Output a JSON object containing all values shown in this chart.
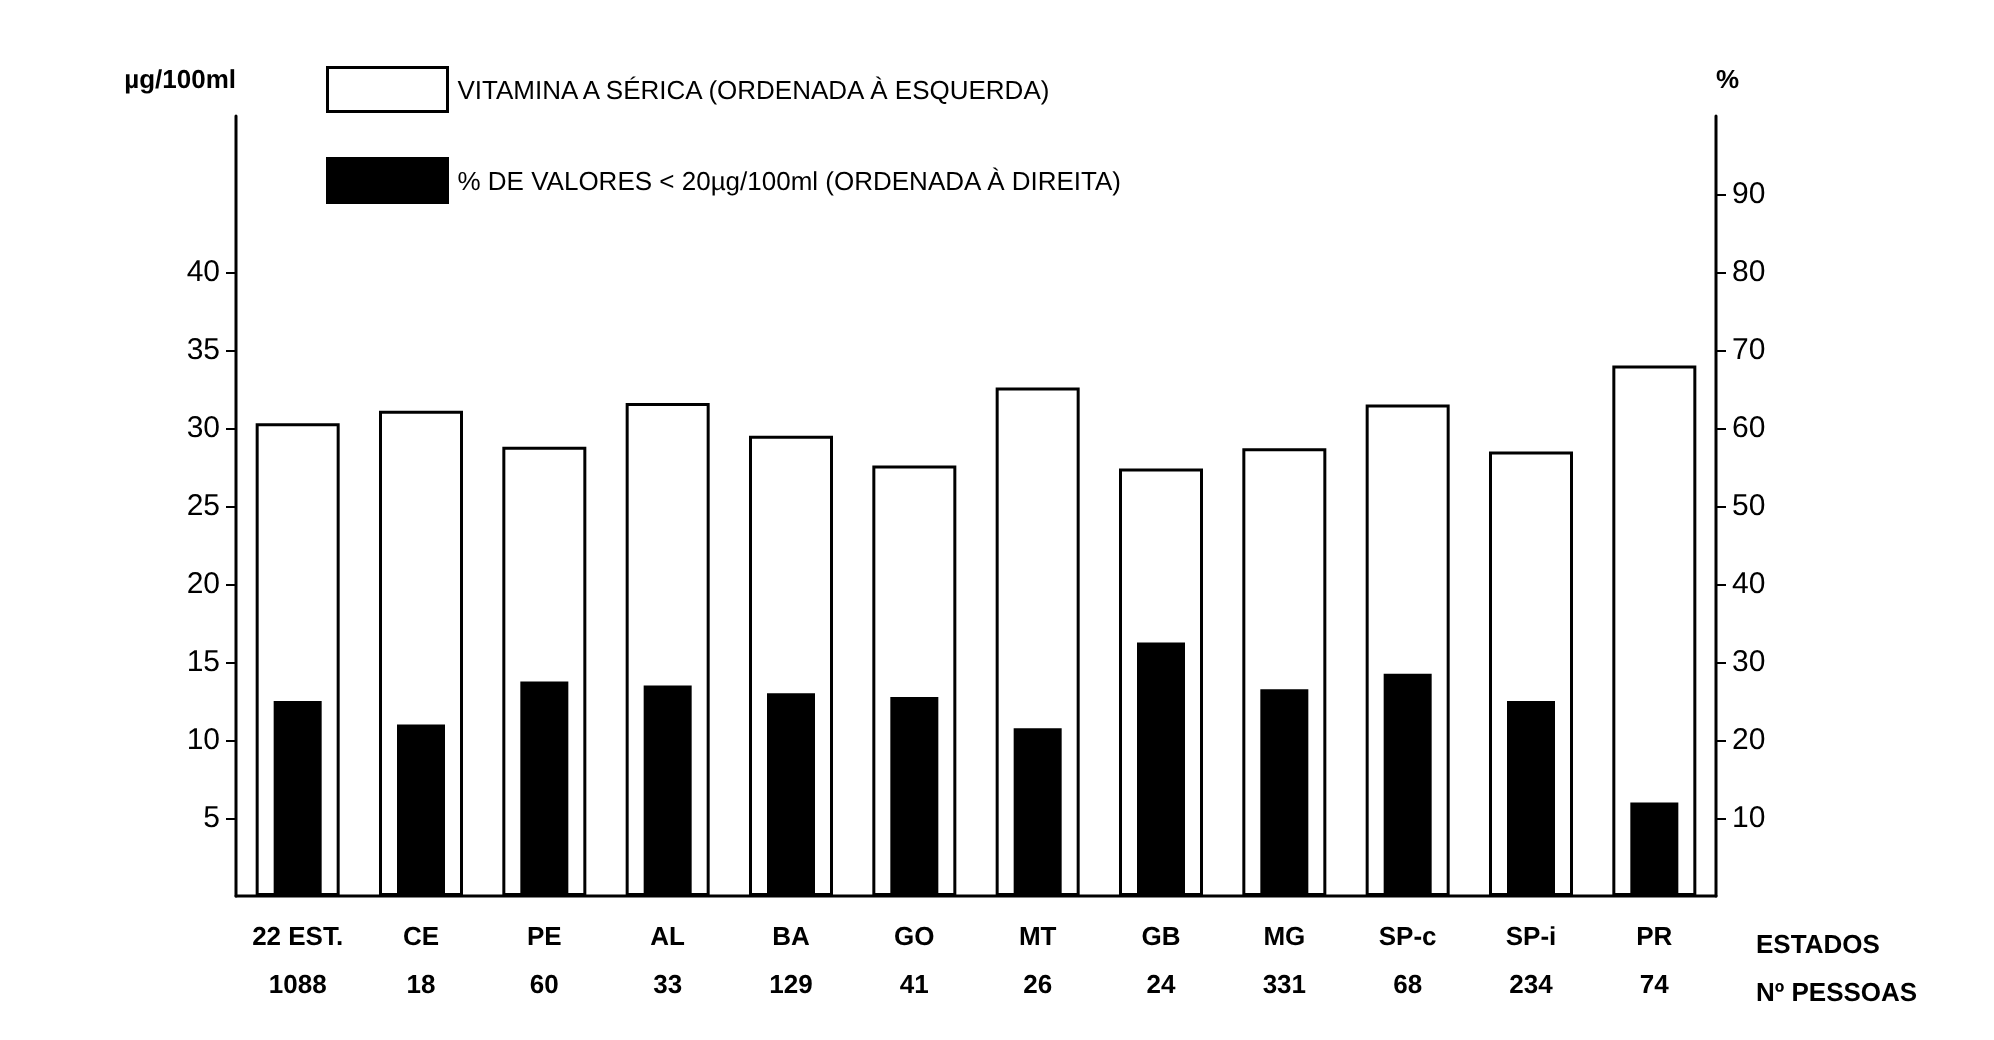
{
  "chart_data": {
    "type": "bar",
    "categories": [
      "22 EST.\n1088",
      "CE\n18",
      "PE\n60",
      "AL\n33",
      "BA\n129",
      "GO\n41",
      "MT\n26",
      "GB\n24",
      "MG\n331",
      "SP-c\n68",
      "SP-i\n234",
      "PR\n74"
    ],
    "series": [
      {
        "name": "VITAMINA A SÉRICA (ORDENADA À ESQUERDA)",
        "color": "#ffffff",
        "values": [
          30.3,
          31.1,
          28.8,
          31.6,
          29.5,
          27.6,
          32.6,
          27.4,
          28.7,
          31.5,
          28.5,
          34.0
        ]
      },
      {
        "name": "% DE VALORES < 20µg/100ml (ORDENADA À DIREITA)",
        "color": "#000000",
        "axis": "y2",
        "values": [
          25,
          22,
          27.5,
          27,
          26,
          25.5,
          21.5,
          32.5,
          26.5,
          28.5,
          25,
          12
        ]
      }
    ],
    "xlabel": "ESTADOS\nNº PESSOAS",
    "ylabel": "µg/100ml",
    "y2label": "%",
    "ylim": [
      0,
      50
    ],
    "yticks": [
      5,
      10,
      15,
      20,
      25,
      30,
      35,
      40
    ],
    "y2lim": [
      0,
      100
    ],
    "y2ticks": [
      10,
      20,
      30,
      40,
      50,
      60,
      70,
      80,
      90
    ],
    "grid": false,
    "legend": "top left"
  }
}
